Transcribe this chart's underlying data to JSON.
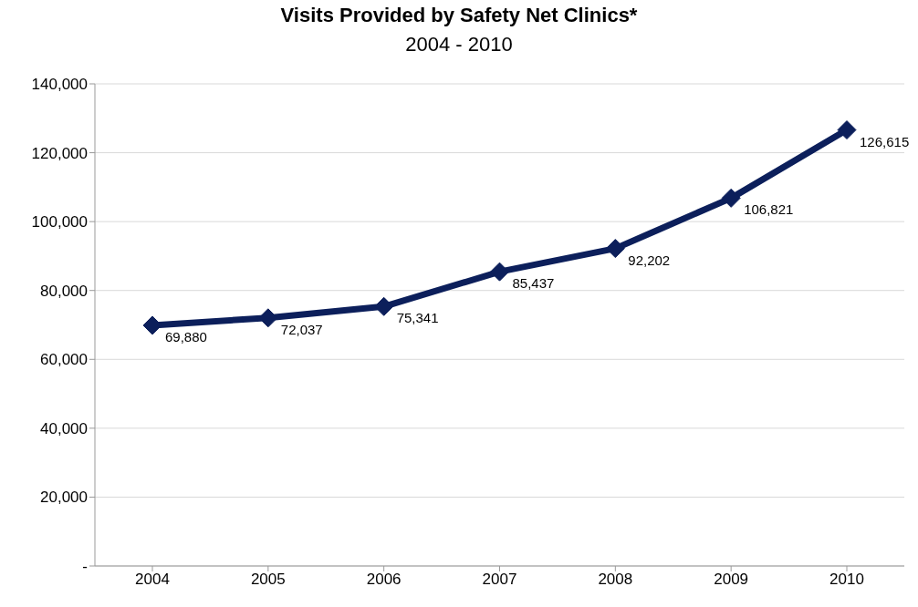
{
  "chart_data": {
    "type": "line",
    "title": "Visits Provided by Safety Net Clinics*",
    "subtitle": "2004 - 2010",
    "categories": [
      "2004",
      "2005",
      "2006",
      "2007",
      "2008",
      "2009",
      "2010"
    ],
    "series": [
      {
        "color": "#0c1f5b",
        "values": [
          69880,
          72037,
          75341,
          85437,
          92202,
          106821,
          126615
        ]
      }
    ],
    "value_labels": [
      "69,880",
      "72,037",
      "75,341",
      "85,437",
      "92,202",
      "106,821",
      "126,615"
    ],
    "ylim": [
      0,
      140000
    ],
    "yticks": [
      {
        "value": 0,
        "label": "-"
      },
      {
        "value": 20000,
        "label": "20,000"
      },
      {
        "value": 40000,
        "label": "40,000"
      },
      {
        "value": 60000,
        "label": "60,000"
      },
      {
        "value": 80000,
        "label": "80,000"
      },
      {
        "value": 100000,
        "label": "100,000"
      },
      {
        "value": 120000,
        "label": "120,000"
      },
      {
        "value": 140000,
        "label": "140,000"
      }
    ],
    "grid": "y",
    "marker": "diamond",
    "line_style": "solid",
    "legend": false
  }
}
